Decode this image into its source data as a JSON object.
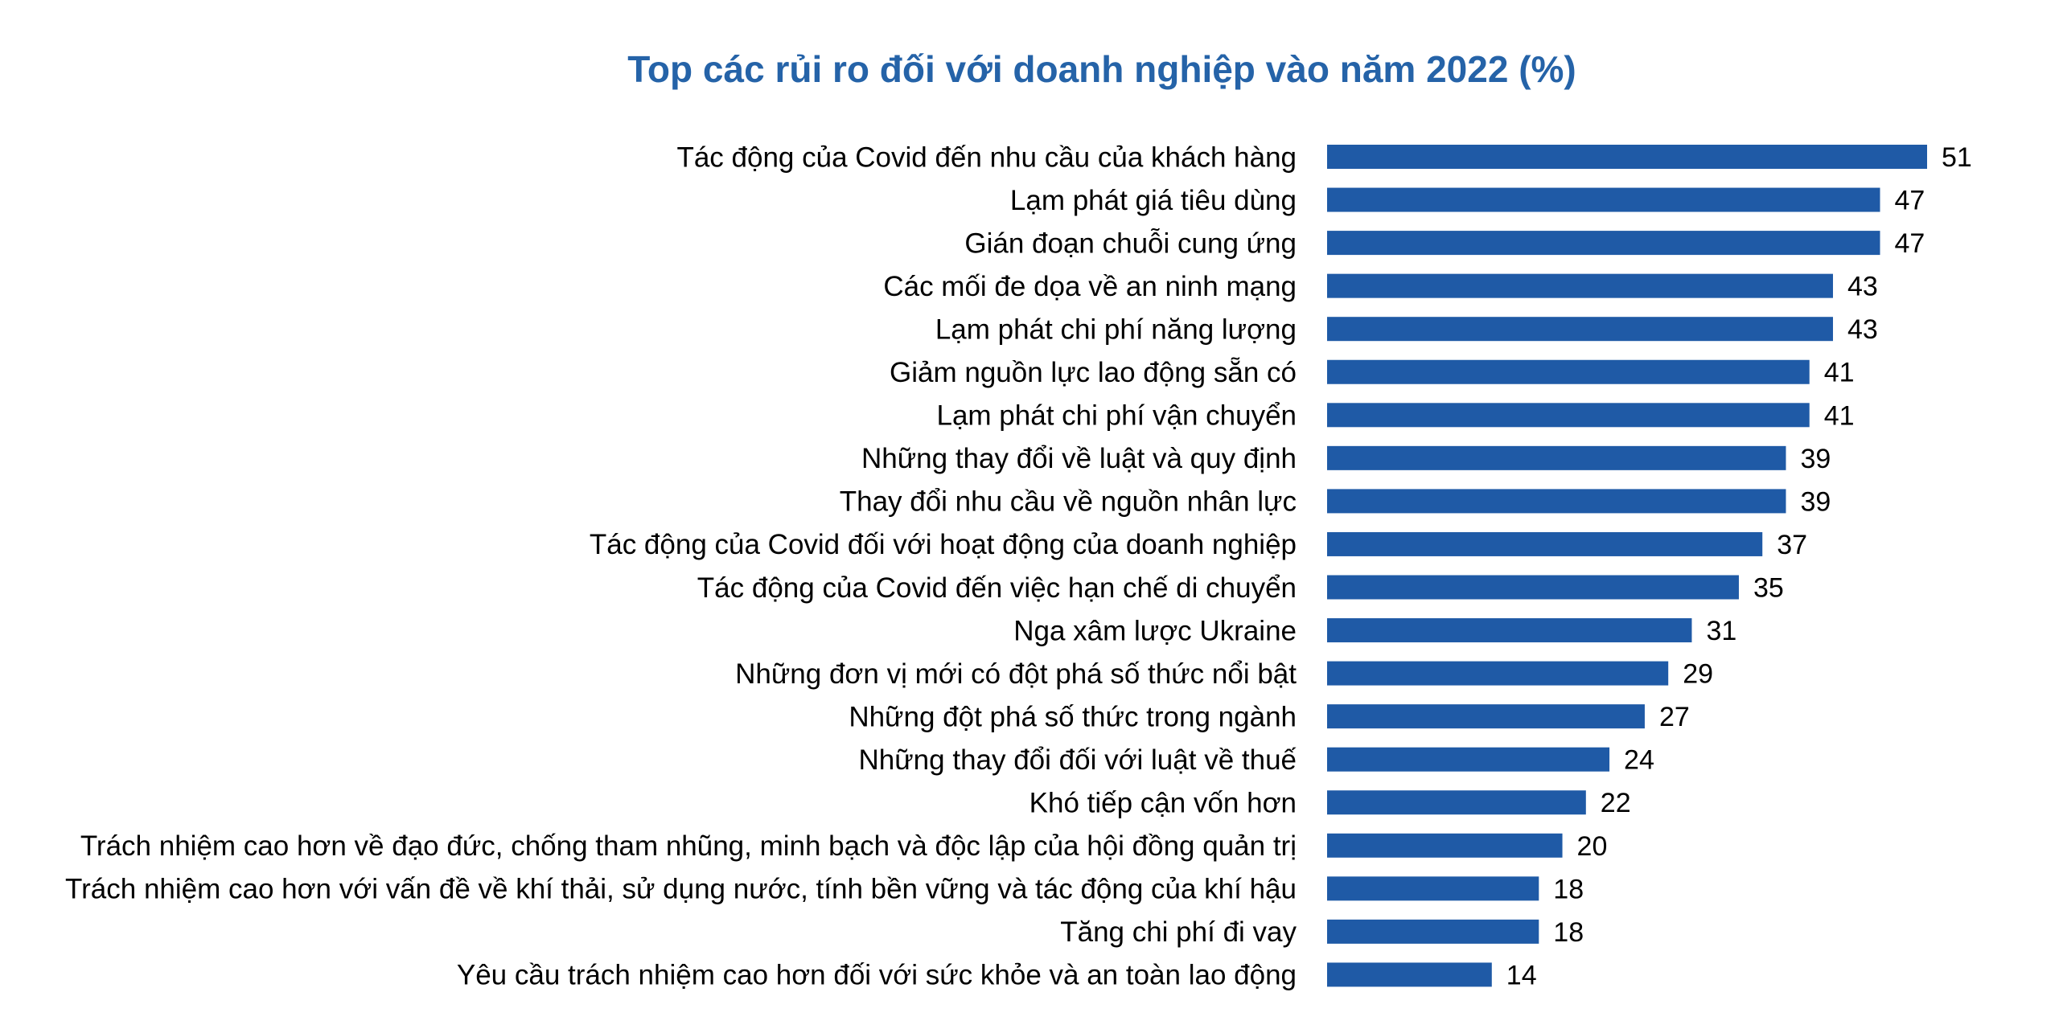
{
  "chart_data": {
    "type": "bar",
    "orientation": "horizontal",
    "title": "Top các rủi ro đối với doanh nghiệp vào năm 2022 (%)",
    "xlabel": "",
    "ylabel": "",
    "bar_color": "#1f5aa6",
    "title_color": "#2563a8",
    "grid": false,
    "data_labels": true,
    "xlim": [
      0,
      51
    ],
    "categories": [
      "Tác động của Covid đến nhu cầu của khách hàng",
      "Lạm phát giá tiêu dùng",
      "Gián đoạn chuỗi cung ứng",
      "Các mối đe dọa về an ninh mạng",
      "Lạm phát chi phí năng lượng",
      "Giảm nguồn lực lao động sẵn có",
      "Lạm phát chi phí vận chuyển",
      "Những thay đổi về luật và quy định",
      "Thay đổi nhu cầu về nguồn nhân lực",
      "Tác động của Covid đối với hoạt động của doanh nghiệp",
      "Tác động của Covid đến việc hạn chế di chuyển",
      "Nga xâm lược Ukraine",
      "Những đơn vị mới có đột phá số thức nổi bật",
      "Những đột phá số thức trong ngành",
      "Những thay đổi đối với luật về thuế",
      "Khó tiếp cận vốn hơn",
      "Trách nhiệm cao hơn về đạo đức, chống tham nhũng, minh bạch và độc lập của hội đồng quản trị",
      "Trách nhiệm cao hơn với vấn đề về khí thải, sử dụng nước, tính bền vững và tác động của khí hậu",
      "Tăng chi phí đi vay",
      "Yêu cầu trách nhiệm cao hơn đối với sức khỏe và an toàn lao động"
    ],
    "values": [
      51,
      47,
      47,
      43,
      43,
      41,
      41,
      39,
      39,
      37,
      35,
      31,
      29,
      27,
      24,
      22,
      20,
      18,
      18,
      14
    ]
  }
}
